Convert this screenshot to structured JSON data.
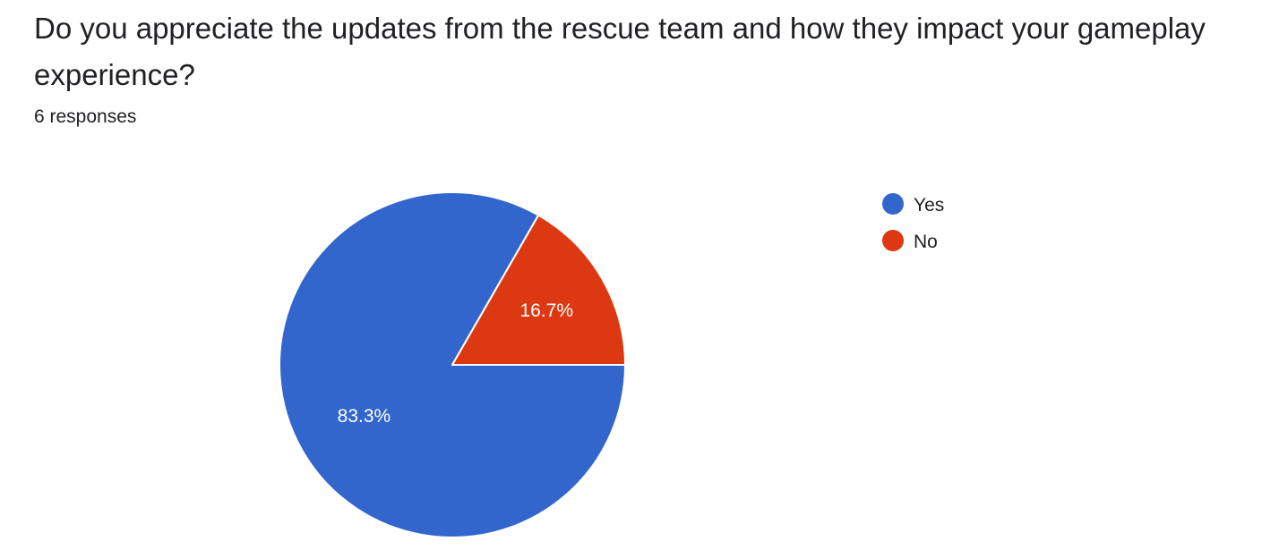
{
  "question": {
    "title": "Do you appreciate the updates from the rescue team and how they impact your gameplay experience?",
    "responses": "6 responses"
  },
  "chart_data": {
    "type": "pie",
    "categories": [
      "Yes",
      "No"
    ],
    "values": [
      83.3,
      16.7
    ],
    "labels": [
      "83.3%",
      "16.7%"
    ],
    "colors": [
      "#3366cc",
      "#dc3912"
    ],
    "legend": "right"
  }
}
